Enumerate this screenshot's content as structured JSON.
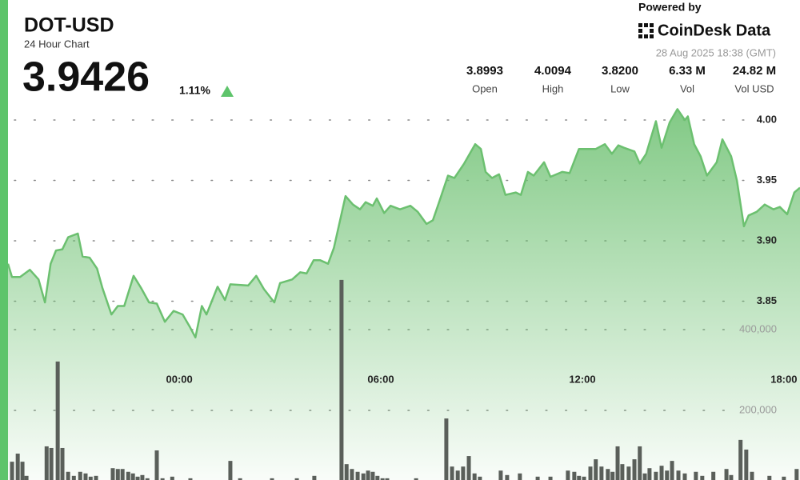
{
  "header": {
    "powered_by": "Powered by",
    "brand": "CoinDesk Data",
    "timestamp": "28 Aug 2025 18:38 (GMT)",
    "price": "3.9426",
    "change": "1.11%",
    "stats": [
      {
        "value": "3.8993",
        "label": "Open"
      },
      {
        "value": "4.0094",
        "label": "High"
      },
      {
        "value": "3.8200",
        "label": "Low"
      },
      {
        "value": "6.33 M",
        "label": "Vol"
      },
      {
        "value": "24.82 M",
        "label": "Vol USD"
      }
    ]
  },
  "chart_data": {
    "type": "line",
    "title": "DOT-USD",
    "subtitle": "24 Hour Chart",
    "color": "#6cc070",
    "x": [
      -5.1,
      -4.98,
      -4.74,
      -4.45,
      -4.19,
      -4.0,
      -3.83,
      -3.67,
      -3.48,
      -3.31,
      -3.02,
      -2.88,
      -2.67,
      -2.45,
      -2.29,
      -2.02,
      -1.83,
      -1.64,
      -1.36,
      -1.14,
      -0.9,
      -0.67,
      -0.43,
      -0.17,
      0.1,
      0.31,
      0.48,
      0.67,
      0.81,
      1.14,
      1.36,
      1.52,
      2.05,
      2.29,
      2.52,
      2.83,
      3.0,
      3.36,
      3.6,
      3.79,
      4.0,
      4.19,
      4.43,
      4.6,
      4.95,
      5.17,
      5.38,
      5.55,
      5.76,
      5.88,
      6.1,
      6.29,
      6.57,
      6.88,
      7.1,
      7.36,
      7.55,
      7.76,
      8.0,
      8.19,
      8.48,
      8.81,
      8.98,
      9.12,
      9.31,
      9.52,
      9.71,
      10.02,
      10.17,
      10.38,
      10.55,
      10.86,
      11.05,
      11.4,
      11.62,
      11.9,
      12.19,
      12.4,
      12.67,
      12.88,
      13.07,
      13.24,
      13.55,
      13.71,
      13.9,
      14.19,
      14.36,
      14.6,
      14.83,
      15.05,
      15.14,
      15.33,
      15.52,
      15.71,
      16.0,
      16.17,
      16.43,
      16.6,
      16.81,
      16.95,
      17.19,
      17.43,
      17.69,
      17.88,
      18.1,
      18.31,
      18.48
    ],
    "values": [
      3.881,
      3.87,
      3.87,
      3.876,
      3.868,
      3.849,
      3.881,
      3.892,
      3.893,
      3.903,
      3.906,
      3.887,
      3.886,
      3.877,
      3.861,
      3.839,
      3.846,
      3.846,
      3.871,
      3.861,
      3.849,
      3.848,
      3.833,
      3.842,
      3.839,
      3.829,
      3.82,
      3.846,
      3.839,
      3.862,
      3.851,
      3.864,
      3.863,
      3.871,
      3.86,
      3.849,
      3.865,
      3.868,
      3.874,
      3.873,
      3.884,
      3.884,
      3.881,
      3.894,
      3.937,
      3.93,
      3.926,
      3.932,
      3.929,
      3.935,
      3.923,
      3.929,
      3.926,
      3.929,
      3.924,
      3.914,
      3.917,
      3.934,
      3.954,
      3.952,
      3.964,
      3.98,
      3.976,
      3.957,
      3.952,
      3.955,
      3.938,
      3.94,
      3.938,
      3.957,
      3.954,
      3.965,
      3.953,
      3.957,
      3.956,
      3.976,
      3.976,
      3.976,
      3.98,
      3.972,
      3.979,
      3.977,
      3.974,
      3.964,
      3.972,
      3.999,
      3.977,
      3.998,
      4.009,
      4.0,
      4.003,
      3.98,
      3.97,
      3.954,
      3.965,
      3.984,
      3.97,
      3.95,
      3.912,
      3.921,
      3.924,
      3.93,
      3.926,
      3.928,
      3.922,
      3.94,
      3.944
    ],
    "xlim": [
      -5.1,
      18.48
    ],
    "xticks": [
      {
        "value": 0,
        "label": "00:00"
      },
      {
        "value": 6,
        "label": "06:00"
      },
      {
        "value": 12,
        "label": "12:00"
      },
      {
        "value": 18,
        "label": "18:00"
      }
    ],
    "ylim": [
      3.8,
      4.02
    ],
    "yticks": [
      {
        "value": 3.85,
        "label": "3.85"
      },
      {
        "value": 3.9,
        "label": "3.90"
      },
      {
        "value": 3.95,
        "label": "3.95"
      },
      {
        "value": 4,
        "label": "4.00"
      }
    ],
    "grid": true,
    "volume": {
      "type": "bar",
      "color": "#5a5f5a",
      "x": [
        -4.98,
        -4.81,
        -4.67,
        -4.55,
        -3.95,
        -3.81,
        -3.62,
        -3.48,
        -3.31,
        -3.14,
        -2.95,
        -2.79,
        -2.64,
        -2.48,
        -1.98,
        -1.83,
        -1.69,
        -1.52,
        -1.38,
        -1.24,
        -1.1,
        -0.95,
        -0.67,
        -0.5,
        -0.21,
        0.33,
        1.52,
        1.81,
        2.76,
        3.5,
        4.02,
        4.83,
        4.98,
        5.14,
        5.31,
        5.48,
        5.62,
        5.76,
        5.9,
        6.05,
        6.19,
        7.05,
        7.95,
        8.12,
        8.29,
        8.45,
        8.62,
        8.79,
        8.95,
        9.57,
        9.76,
        10.14,
        10.67,
        11.05,
        11.57,
        11.76,
        11.9,
        12.05,
        12.24,
        12.4,
        12.57,
        12.76,
        12.9,
        13.05,
        13.19,
        13.38,
        13.55,
        13.71,
        13.86,
        14.0,
        14.19,
        14.36,
        14.52,
        14.67,
        14.86,
        15.05,
        15.38,
        15.57,
        15.9,
        16.29,
        16.43,
        16.71,
        16.88,
        17.05,
        17.57,
        18.0,
        18.38
      ],
      "values": [
        73000,
        93000,
        73000,
        38000,
        111000,
        107000,
        321000,
        107000,
        48000,
        38000,
        48000,
        44000,
        36000,
        38000,
        57000,
        55000,
        55000,
        48000,
        44000,
        36000,
        40000,
        32000,
        101000,
        32000,
        36000,
        32000,
        75000,
        32000,
        32000,
        32000,
        38000,
        523000,
        67000,
        55000,
        48000,
        44000,
        51000,
        48000,
        38000,
        32000,
        32000,
        32000,
        180000,
        61000,
        51000,
        61000,
        87000,
        44000,
        36000,
        51000,
        40000,
        44000,
        36000,
        36000,
        51000,
        48000,
        38000,
        36000,
        61000,
        79000,
        61000,
        55000,
        48000,
        111000,
        67000,
        61000,
        79000,
        111000,
        44000,
        57000,
        48000,
        63000,
        51000,
        75000,
        51000,
        44000,
        48000,
        38000,
        48000,
        55000,
        40000,
        127000,
        103000,
        48000,
        38000,
        36000,
        55000
      ],
      "ylim": [
        0,
        800000
      ],
      "yticks": [
        {
          "value": 200000,
          "label": "200,000"
        },
        {
          "value": 400000,
          "label": "400,000"
        }
      ]
    }
  }
}
